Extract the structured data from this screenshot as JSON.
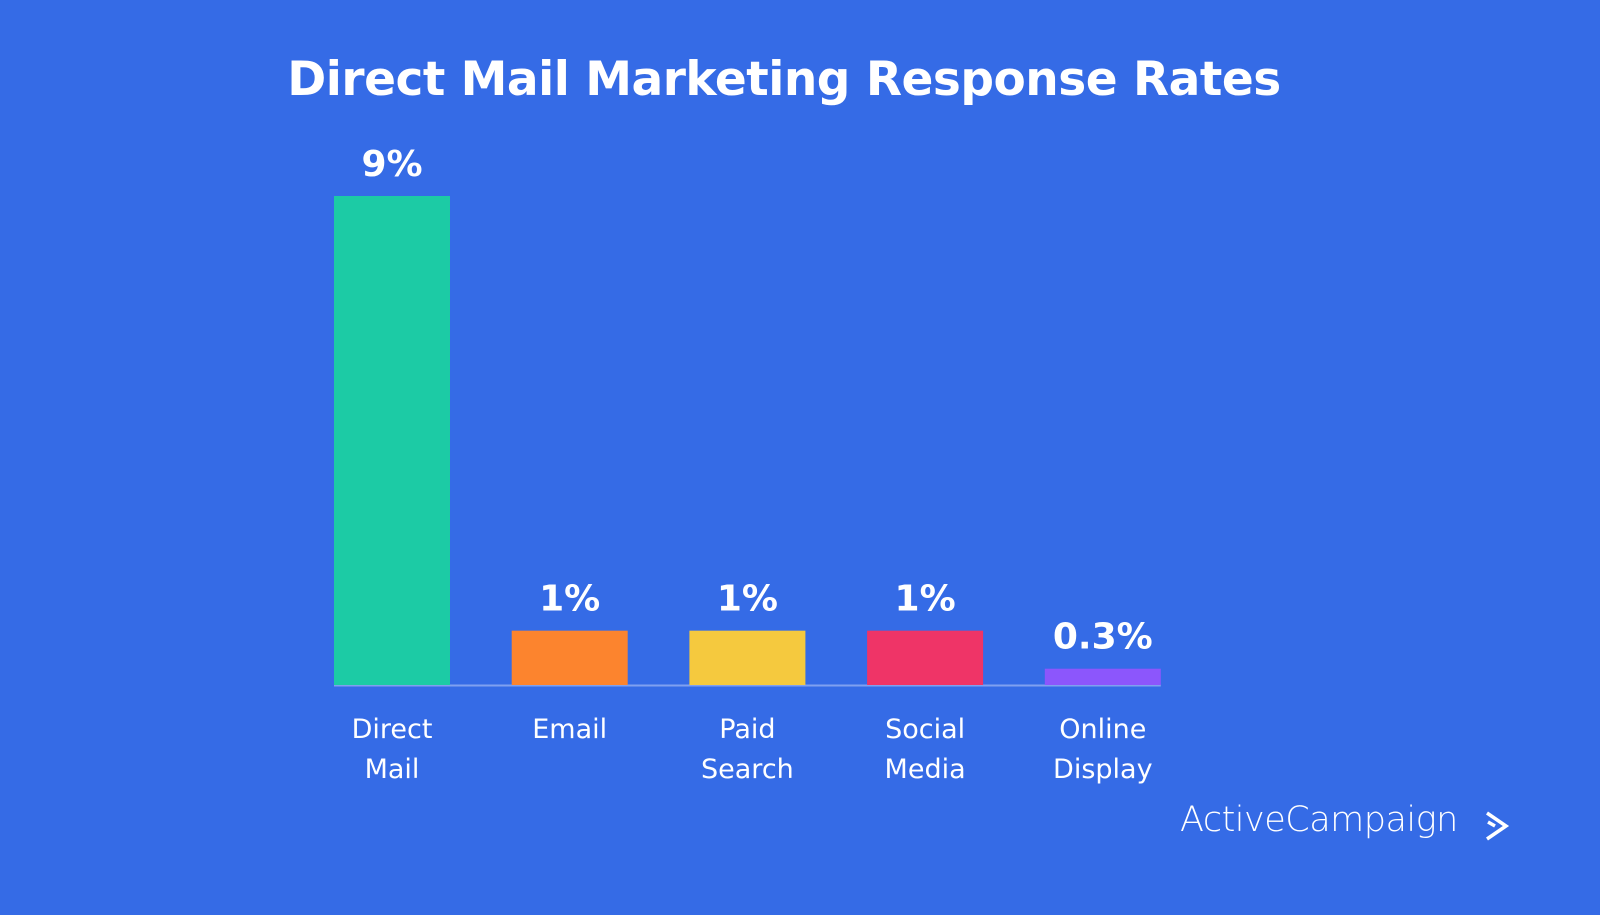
{
  "chart_data": {
    "type": "bar",
    "title": "Direct Mail Marketing Response Rates",
    "categories": [
      [
        "Direct",
        "Mail"
      ],
      [
        "Email"
      ],
      [
        "Paid",
        "Search"
      ],
      [
        "Social",
        "Media"
      ],
      [
        "Online",
        "Display"
      ]
    ],
    "values": [
      9,
      1,
      1,
      1,
      0.3
    ],
    "data_labels": [
      "9%",
      "1%",
      "1%",
      "1%",
      "0.3%"
    ],
    "unit": "%",
    "colors": [
      "#1ccba5",
      "#fc842e",
      "#f5c93e",
      "#ef3467",
      "#8c56fc"
    ],
    "background": "#356be6",
    "ylim": [
      0,
      9
    ],
    "grid": false,
    "legend": "none",
    "xlabel": "",
    "ylabel": ""
  },
  "brand": {
    "logo_text": "ActiveCampaign",
    "logo_icon": "chevron-right-icon"
  }
}
